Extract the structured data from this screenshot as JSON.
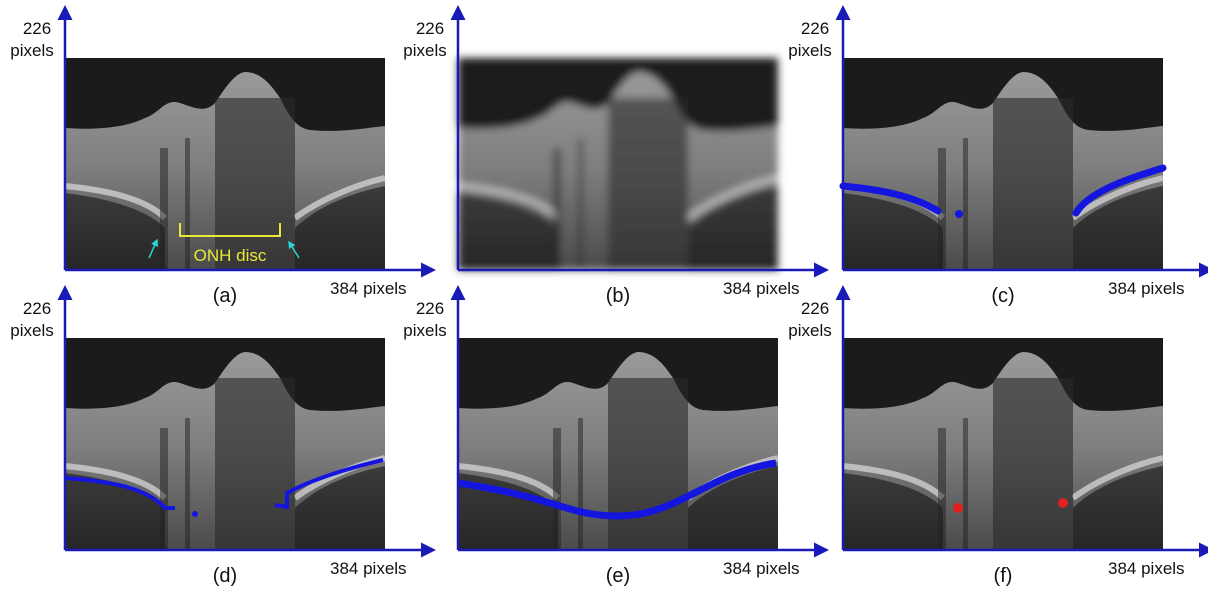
{
  "panels": [
    {
      "caption": "(a)",
      "y_label": [
        "226",
        "pixels"
      ],
      "x_label": "384 pixels",
      "annotation": "ONH disc"
    },
    {
      "caption": "(b)",
      "y_label": [
        "226",
        "pixels"
      ],
      "x_label": "384 pixels"
    },
    {
      "caption": "(c)",
      "y_label": [
        "226",
        "pixels"
      ],
      "x_label": "384 pixels"
    },
    {
      "caption": "(d)",
      "y_label": [
        "226",
        "pixels"
      ],
      "x_label": "384 pixels"
    },
    {
      "caption": "(e)",
      "y_label": [
        "226",
        "pixels"
      ],
      "x_label": "384 pixels"
    },
    {
      "caption": "(f)",
      "y_label": [
        "226",
        "pixels"
      ],
      "x_label": "384 pixels"
    }
  ]
}
